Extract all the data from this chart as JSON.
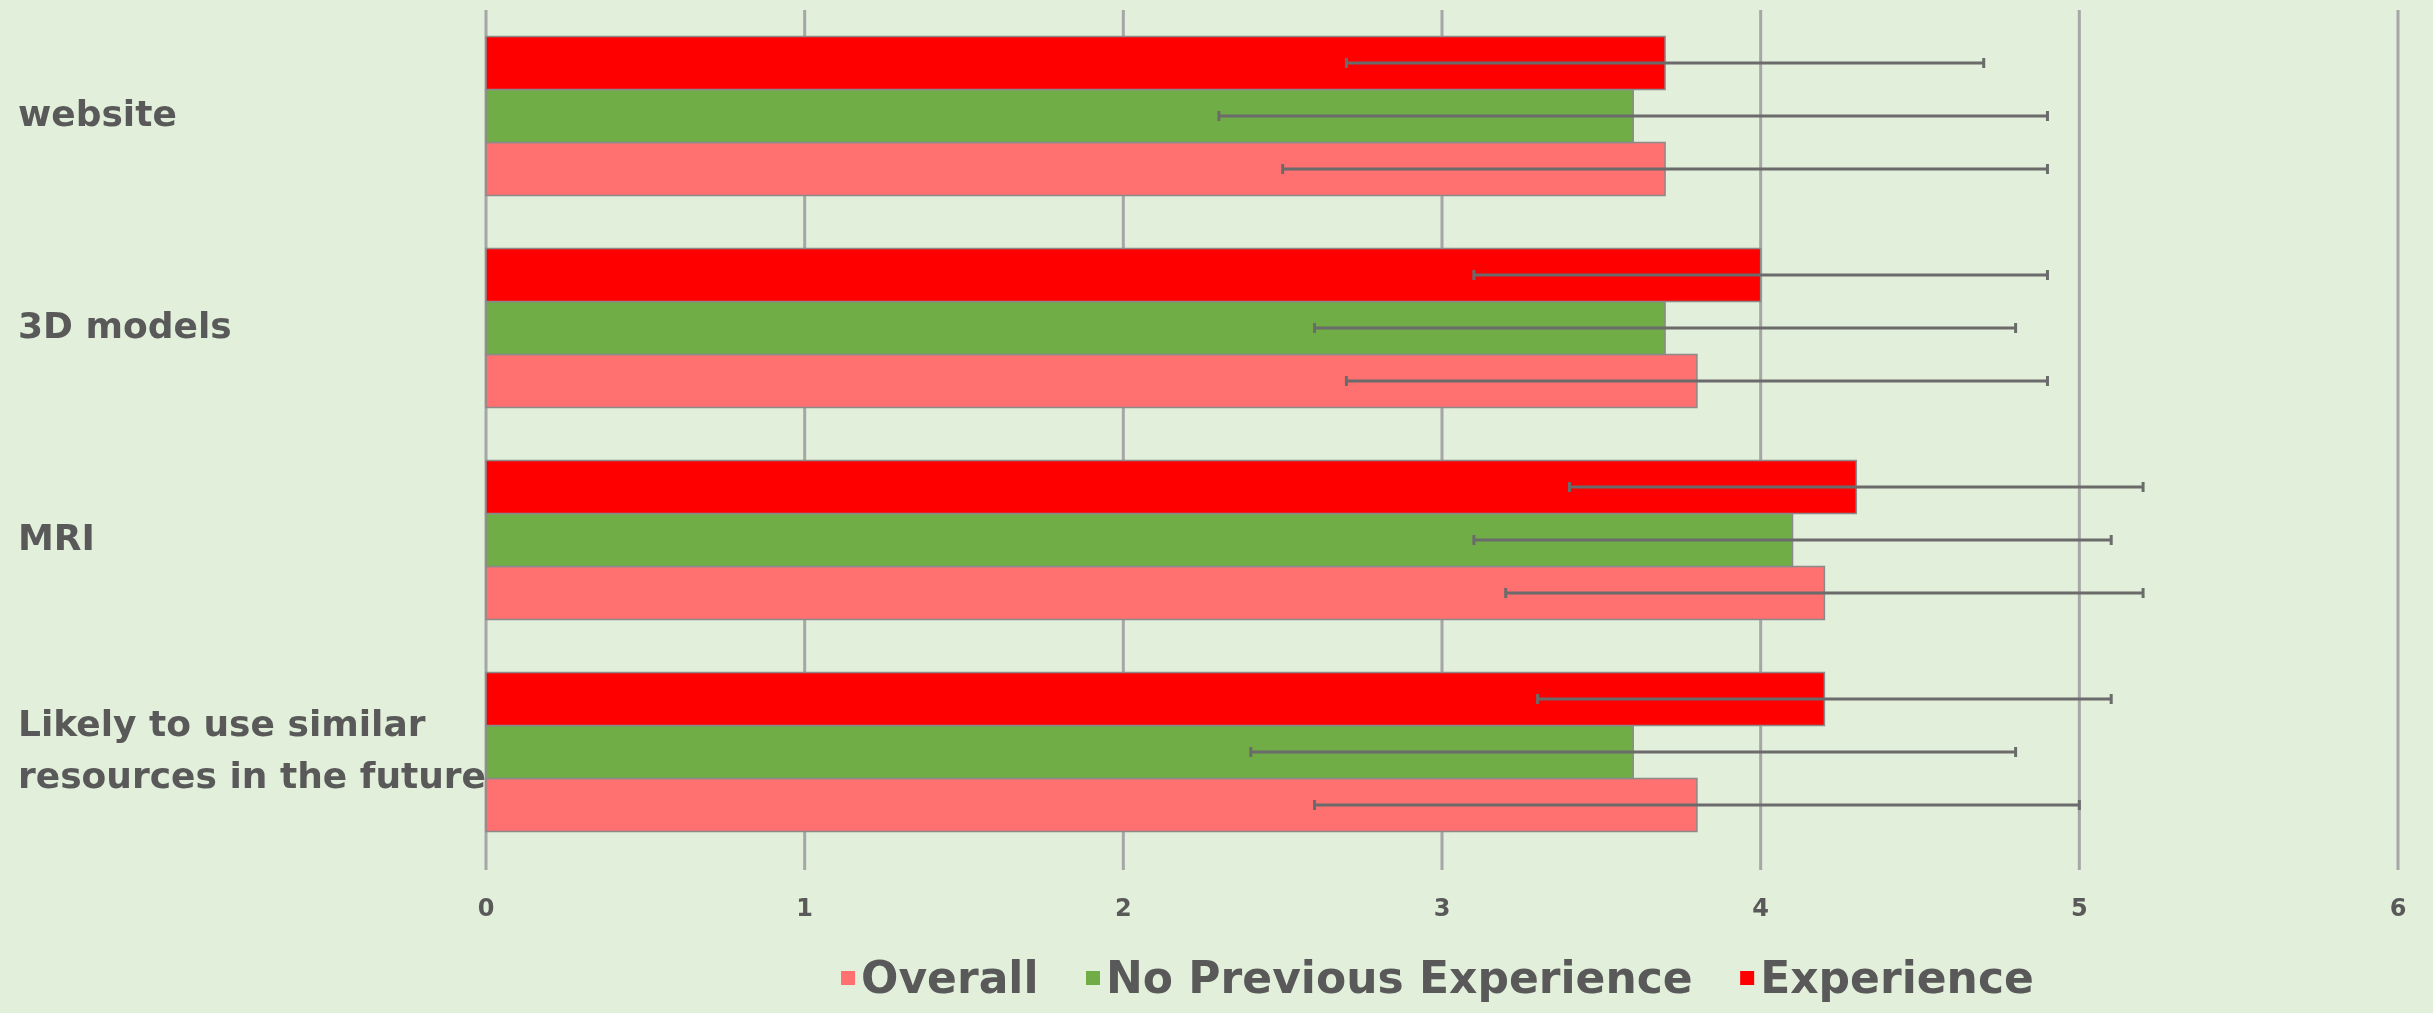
{
  "chart_data": {
    "type": "bar",
    "orientation": "horizontal",
    "categories": [
      "website",
      "3D models",
      "MRI",
      "Likely to use similar resources in the future"
    ],
    "series": [
      {
        "name": "Overall",
        "color": "#ff7070",
        "values": [
          3.7,
          3.8,
          4.2,
          3.8
        ],
        "errors": [
          1.2,
          1.1,
          1.0,
          1.2
        ]
      },
      {
        "name": "No Previous Experience",
        "color": "#70ad47",
        "values": [
          3.6,
          3.7,
          4.1,
          3.6
        ],
        "errors": [
          1.3,
          1.1,
          1.0,
          1.2
        ]
      },
      {
        "name": "Experience",
        "color": "#ff0000",
        "values": [
          3.7,
          4.0,
          4.3,
          4.2
        ],
        "errors": [
          1.0,
          0.9,
          0.9,
          0.9
        ]
      }
    ],
    "xlim": [
      0,
      6
    ],
    "xticks": [
      0,
      1,
      2,
      3,
      4,
      5,
      6
    ],
    "grid": "x",
    "legend": "bottom"
  }
}
